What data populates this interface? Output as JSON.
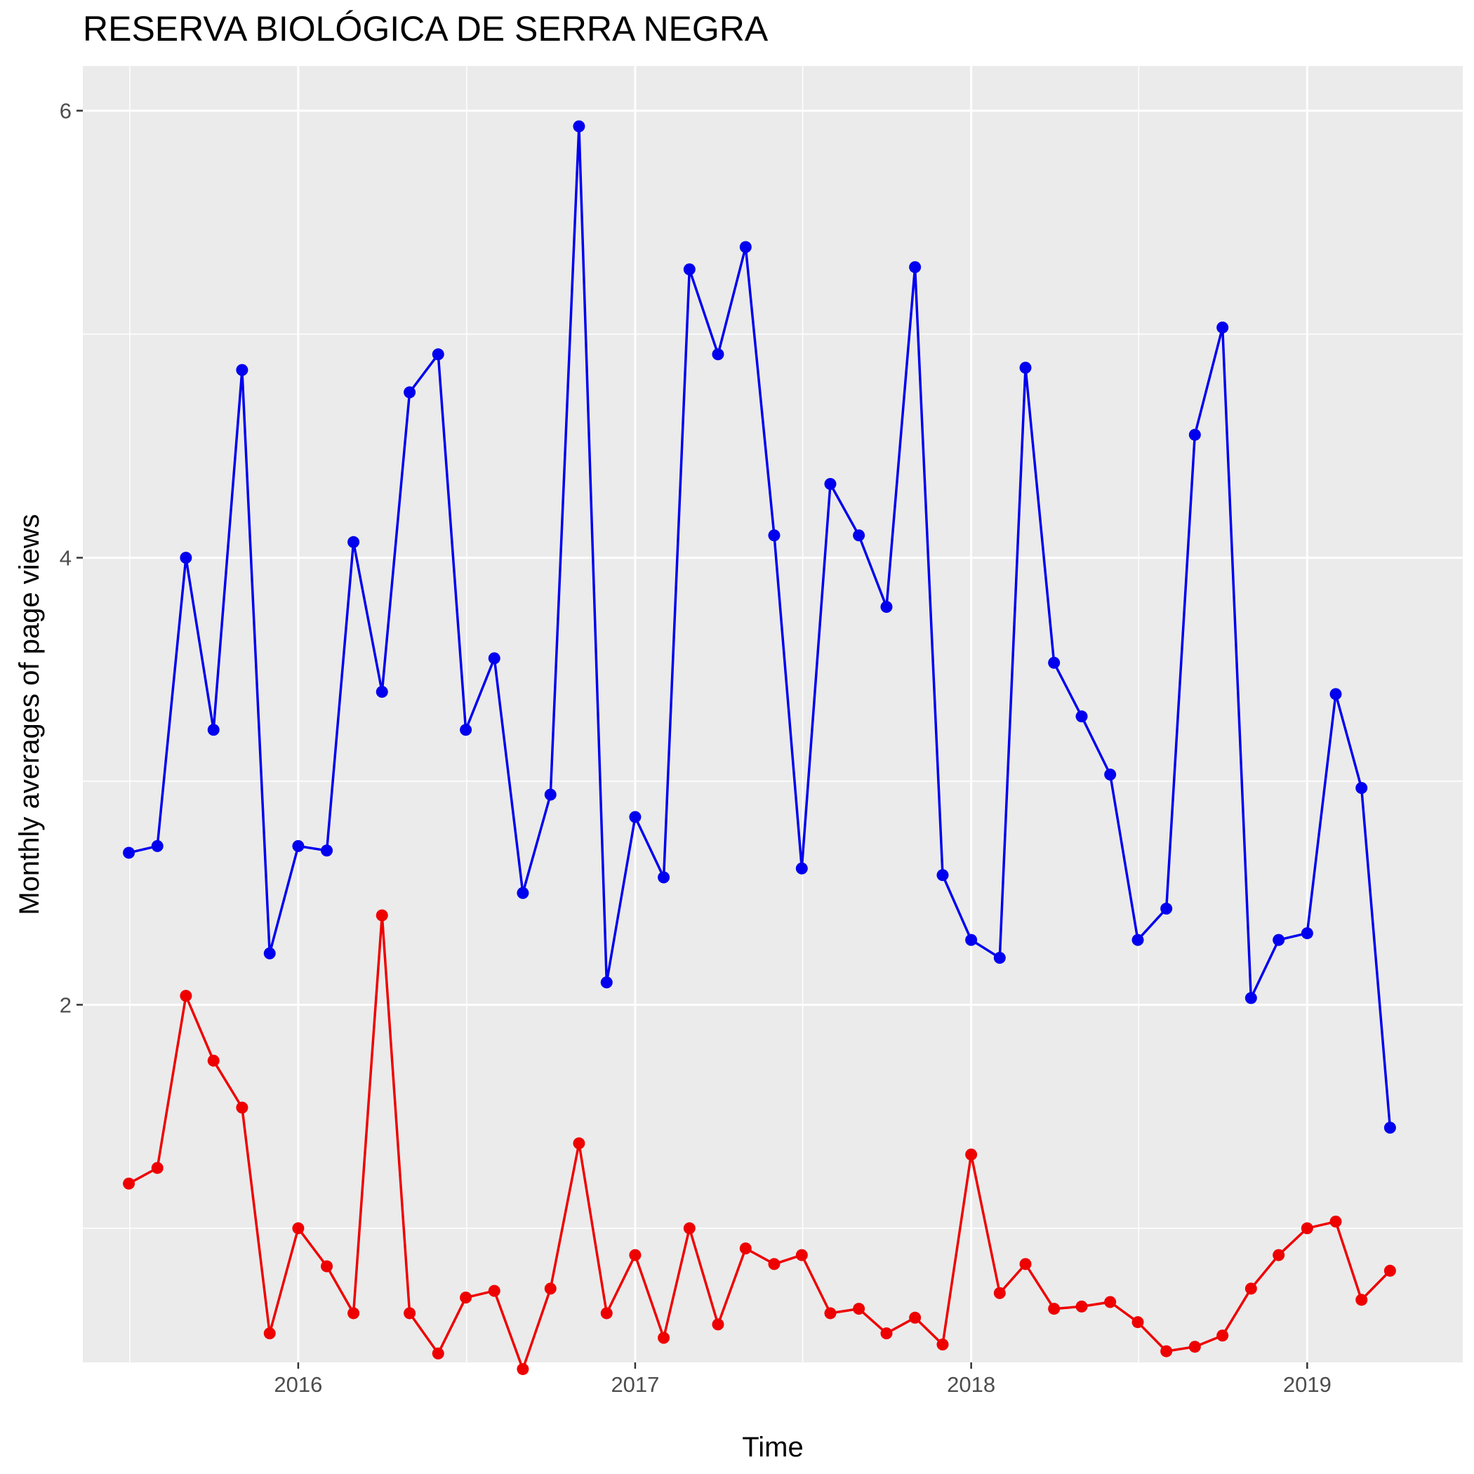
{
  "chart_data": {
    "type": "line",
    "title": "RESERVA BIOLÓGICA DE SERRA NEGRA",
    "xlabel": "Time",
    "ylabel": "Monthly averages of page views",
    "x_ticks": [
      2016,
      2017,
      2018,
      2019
    ],
    "y_ticks": [
      2,
      4,
      6
    ],
    "xlim": [
      "2015-05-12",
      "2019-06-19"
    ],
    "ylim": [
      0.4,
      6.2
    ],
    "grid": true,
    "legend": "none",
    "x": [
      "2015-07",
      "2015-08",
      "2015-09",
      "2015-10",
      "2015-11",
      "2015-12",
      "2016-01",
      "2016-02",
      "2016-03",
      "2016-04",
      "2016-05",
      "2016-06",
      "2016-07",
      "2016-08",
      "2016-09",
      "2016-10",
      "2016-11",
      "2016-12",
      "2017-01",
      "2017-02",
      "2017-03",
      "2017-04",
      "2017-05",
      "2017-06",
      "2017-07",
      "2017-08",
      "2017-09",
      "2017-10",
      "2017-11",
      "2017-12",
      "2018-01",
      "2018-02",
      "2018-03",
      "2018-04",
      "2018-05",
      "2018-06",
      "2018-07",
      "2018-08",
      "2018-09",
      "2018-10",
      "2018-11",
      "2018-12",
      "2019-01",
      "2019-02",
      "2019-03",
      "2019-04",
      "2019-05"
    ],
    "series": [
      {
        "color": "#0000ee",
        "values": [
          2.68,
          2.71,
          4.0,
          3.23,
          4.84,
          2.23,
          2.71,
          2.69,
          4.07,
          3.4,
          4.74,
          4.91,
          3.23,
          3.55,
          2.5,
          2.94,
          5.93,
          2.1,
          2.84,
          2.57,
          5.29,
          4.91,
          5.39,
          4.1,
          2.61,
          4.33,
          4.1,
          3.78,
          5.3,
          2.58,
          2.29,
          2.21,
          4.85,
          3.53,
          3.29,
          3.03,
          2.29,
          2.43,
          4.55,
          5.03,
          2.03,
          2.29,
          2.32,
          3.39,
          2.97,
          1.45,
          null
        ]
      },
      {
        "color": "#ee0000",
        "values": [
          1.2,
          1.27,
          2.04,
          1.75,
          1.54,
          0.53,
          1.0,
          0.83,
          0.62,
          2.4,
          0.62,
          0.44,
          0.69,
          0.72,
          0.37,
          0.73,
          1.38,
          0.62,
          0.88,
          0.51,
          1.0,
          0.57,
          0.91,
          0.84,
          0.88,
          0.62,
          0.64,
          0.53,
          0.6,
          0.48,
          1.33,
          0.71,
          0.84,
          0.64,
          0.65,
          0.67,
          0.58,
          0.45,
          0.47,
          0.52,
          0.73,
          0.88,
          1.0,
          1.03,
          0.68,
          0.81,
          null
        ]
      }
    ]
  }
}
